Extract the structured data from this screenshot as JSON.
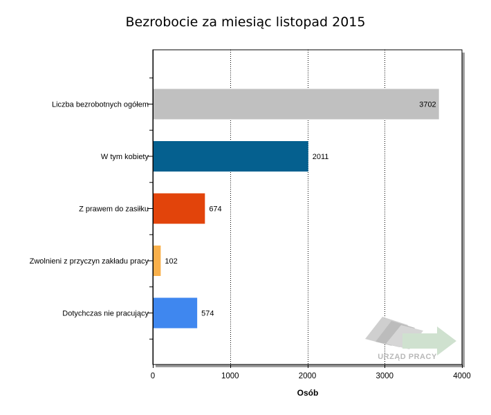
{
  "chart_data": {
    "type": "bar",
    "orientation": "horizontal",
    "title": "Bezrobocie za miesiąc listopad 2015",
    "xlabel": "Osób",
    "ylabel": "",
    "categories": [
      "Liczba bezrobotnych ogółem",
      "W tym kobiety",
      "Z prawem do zasiłku",
      "Zwolnieni z przyczyn zakładu pracy",
      "Dotychczas nie pracujący"
    ],
    "values": [
      3702,
      2011,
      674,
      102,
      574
    ],
    "value_labels": [
      "3702",
      "2011",
      "674",
      "102",
      "574"
    ],
    "colors": [
      "#c0c0c0",
      "#05608f",
      "#e2440b",
      "#f9b04b",
      "#3f87ef"
    ],
    "xlim": [
      0,
      4000
    ],
    "xticks": [
      0,
      1000,
      2000,
      3000,
      4000
    ],
    "xtick_labels": [
      "0",
      "1000",
      "2000",
      "3000",
      "4000"
    ],
    "grid": "vertical dotted",
    "legend": "none"
  },
  "watermark": {
    "text": "URZĄD PRACY"
  }
}
